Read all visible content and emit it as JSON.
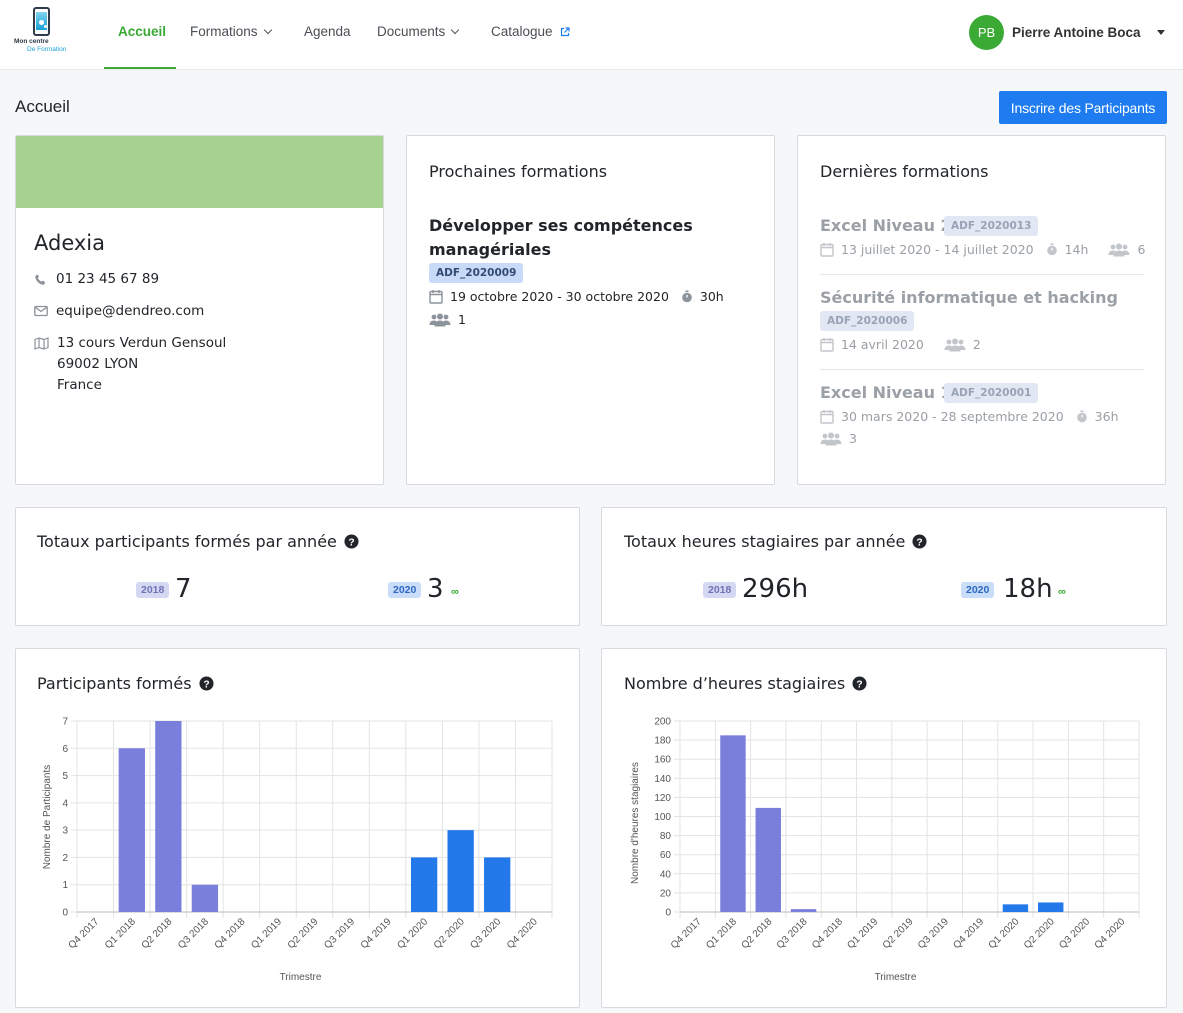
{
  "nav": {
    "logo_line1": "Mon centre",
    "logo_line2": "De Formation",
    "items": [
      {
        "label": "Accueil"
      },
      {
        "label": "Formations"
      },
      {
        "label": "Agenda"
      },
      {
        "label": "Documents"
      },
      {
        "label": "Catalogue"
      }
    ],
    "user_initials": "PB",
    "user_name": "Pierre Antoine Boca"
  },
  "page": {
    "title": "Accueil",
    "primary_button": "Inscrire des Participants"
  },
  "company": {
    "name": "Adexia",
    "phone": "01 23 45 67 89",
    "email": "equipe@dendreo.com",
    "address_line1": "13 cours Verdun Gensoul",
    "address_line2": "69002 LYON",
    "address_line3": "France"
  },
  "upcoming": {
    "title": "Prochaines formations",
    "items": [
      {
        "title_line1": "Développer ses compétences",
        "title_line2": "managériales",
        "code": "ADF_2020009",
        "dates": "19 octobre 2020 - 30 octobre 2020",
        "duration": "30h",
        "participants": "1"
      }
    ]
  },
  "recent": {
    "title": "Dernières formations",
    "items": [
      {
        "title": "Excel Niveau 2",
        "code": "ADF_2020013",
        "dates": "13 juillet 2020 - 14 juillet 2020",
        "duration": "14h",
        "participants": "6"
      },
      {
        "title": "Sécurité informatique et hacking",
        "code": "ADF_2020006",
        "dates": "14 avril 2020",
        "participants": "2"
      },
      {
        "title": "Excel Niveau 1",
        "code": "ADF_2020001",
        "dates": "30 mars 2020 - 28 septembre 2020",
        "duration": "36h",
        "participants": "3"
      }
    ]
  },
  "totals_participants": {
    "title": "Totaux participants formés par année",
    "entries": [
      {
        "year": "2018",
        "value": "7"
      },
      {
        "year": "2020",
        "value": "3",
        "suffix": "∞"
      }
    ]
  },
  "totals_hours": {
    "title": "Totaux heures stagiaires par année",
    "entries": [
      {
        "year": "2018",
        "value": "296h"
      },
      {
        "year": "2020",
        "value": "18h",
        "suffix": "∞"
      }
    ]
  },
  "colors": {
    "accent": "#3aaa35",
    "primary": "#1e7cf0",
    "bar_2018": "#7b7fdc",
    "bar_2020": "#2479ea",
    "banner": "#a6d18f"
  },
  "chart_data": [
    {
      "type": "bar",
      "title": "Participants formés",
      "xlabel": "Trimestre",
      "ylabel": "Nombre de Participants",
      "ylim": [
        0,
        7
      ],
      "yticks": [
        0,
        1,
        2,
        3,
        4,
        5,
        6,
        7
      ],
      "categories": [
        "Q4 2017",
        "Q1 2018",
        "Q2 2018",
        "Q3 2018",
        "Q4 2018",
        "Q1 2019",
        "Q2 2019",
        "Q3 2019",
        "Q4 2019",
        "Q1 2020",
        "Q2 2020",
        "Q3 2020",
        "Q4 2020"
      ],
      "values": [
        0,
        6,
        7,
        1,
        0,
        0,
        0,
        0,
        0,
        2,
        3,
        2,
        0
      ],
      "grid": true
    },
    {
      "type": "bar",
      "title": "Nombre d’heures stagiaires",
      "xlabel": "Trimestre",
      "ylabel": "Nombre d'heures stagiaires",
      "ylim": [
        0,
        200
      ],
      "yticks": [
        0,
        20,
        40,
        60,
        80,
        100,
        120,
        140,
        160,
        180,
        200
      ],
      "categories": [
        "Q4 2017",
        "Q1 2018",
        "Q2 2018",
        "Q3 2018",
        "Q4 2018",
        "Q1 2019",
        "Q2 2019",
        "Q3 2019",
        "Q4 2019",
        "Q1 2020",
        "Q2 2020",
        "Q3 2020",
        "Q4 2020"
      ],
      "values": [
        0,
        185,
        109,
        3,
        0,
        0,
        0,
        0,
        0,
        8,
        10,
        0,
        0
      ],
      "grid": true
    }
  ]
}
